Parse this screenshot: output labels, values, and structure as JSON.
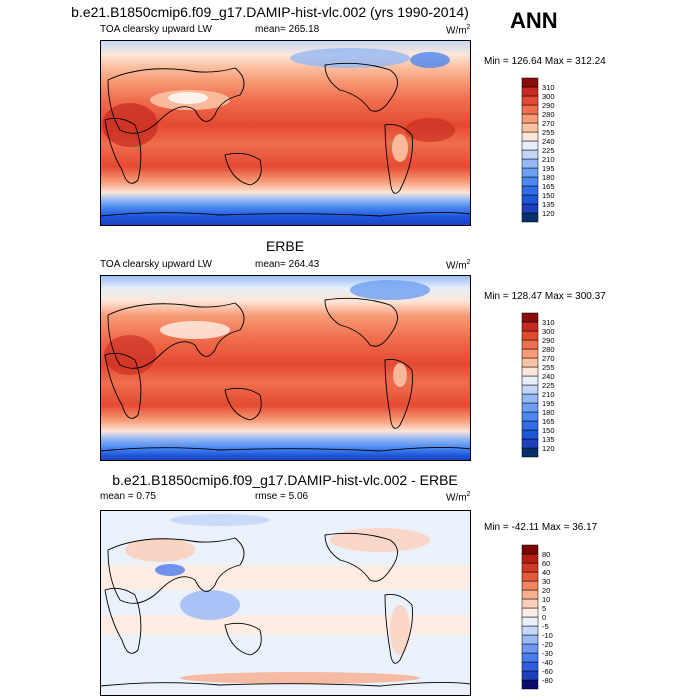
{
  "season": "ANN",
  "panels": [
    {
      "title": "b.e21.B1850cmip6.f09_g17.DAMIP-hist-vlc.002 (yrs 1990-2014)",
      "variable": "TOA clearsky upward LW",
      "mean_text": "mean= 265.18",
      "rmse_text": "",
      "units_base": "W/m",
      "units_exp": "2",
      "minmax": "Min = 126.64 Max = 312.24",
      "colorbar": {
        "levels": [
          "120",
          "135",
          "150",
          "165",
          "180",
          "195",
          "210",
          "225",
          "240",
          "255",
          "270",
          "280",
          "290",
          "300",
          "310"
        ],
        "colors": [
          "#08306b",
          "#1f3fbf",
          "#1e56dc",
          "#2f6ee8",
          "#4b88f0",
          "#6d9ff3",
          "#94b9f5",
          "#c3d6f7",
          "#e6eef8",
          "#fde6d8",
          "#fac2a3",
          "#f79a76",
          "#ef6e4e",
          "#e44a32",
          "#c62a1f",
          "#8a0c0c"
        ]
      }
    },
    {
      "title": "ERBE",
      "variable": "TOA clearsky upward LW",
      "mean_text": "mean= 264.43",
      "rmse_text": "",
      "units_base": "W/m",
      "units_exp": "2",
      "minmax": "Min = 128.47 Max = 300.37",
      "colorbar": {
        "levels": [
          "120",
          "135",
          "150",
          "165",
          "180",
          "195",
          "210",
          "225",
          "240",
          "255",
          "270",
          "280",
          "290",
          "300",
          "310"
        ],
        "colors": [
          "#08306b",
          "#1f3fbf",
          "#1e56dc",
          "#2f6ee8",
          "#4b88f0",
          "#6d9ff3",
          "#94b9f5",
          "#c3d6f7",
          "#e6eef8",
          "#fde6d8",
          "#fac2a3",
          "#f79a76",
          "#ef6e4e",
          "#e44a32",
          "#c62a1f",
          "#8a0c0c"
        ]
      }
    },
    {
      "title": "b.e21.B1850cmip6.f09_g17.DAMIP-hist-vlc.002 - ERBE",
      "variable": "",
      "mean_text": "mean =  0.75",
      "rmse_text": "rmse =  5.06",
      "units_base": "W/m",
      "units_exp": "2",
      "minmax": "Min = -42.11 Max =  36.17",
      "colorbar": {
        "levels": [
          "-80",
          "-60",
          "-40",
          "-30",
          "-20",
          "-10",
          "-5",
          "0",
          "5",
          "10",
          "20",
          "30",
          "40",
          "60",
          "80"
        ],
        "colors": [
          "#08106b",
          "#1f3fbf",
          "#2f5ee3",
          "#4b7cf0",
          "#6f98f3",
          "#9ab8f5",
          "#c6d8f8",
          "#eaf1fb",
          "#fdece3",
          "#fbd0bb",
          "#f8ad8e",
          "#f2845f",
          "#e65a3c",
          "#d33a26",
          "#b81f14",
          "#7a0606"
        ]
      }
    }
  ]
}
